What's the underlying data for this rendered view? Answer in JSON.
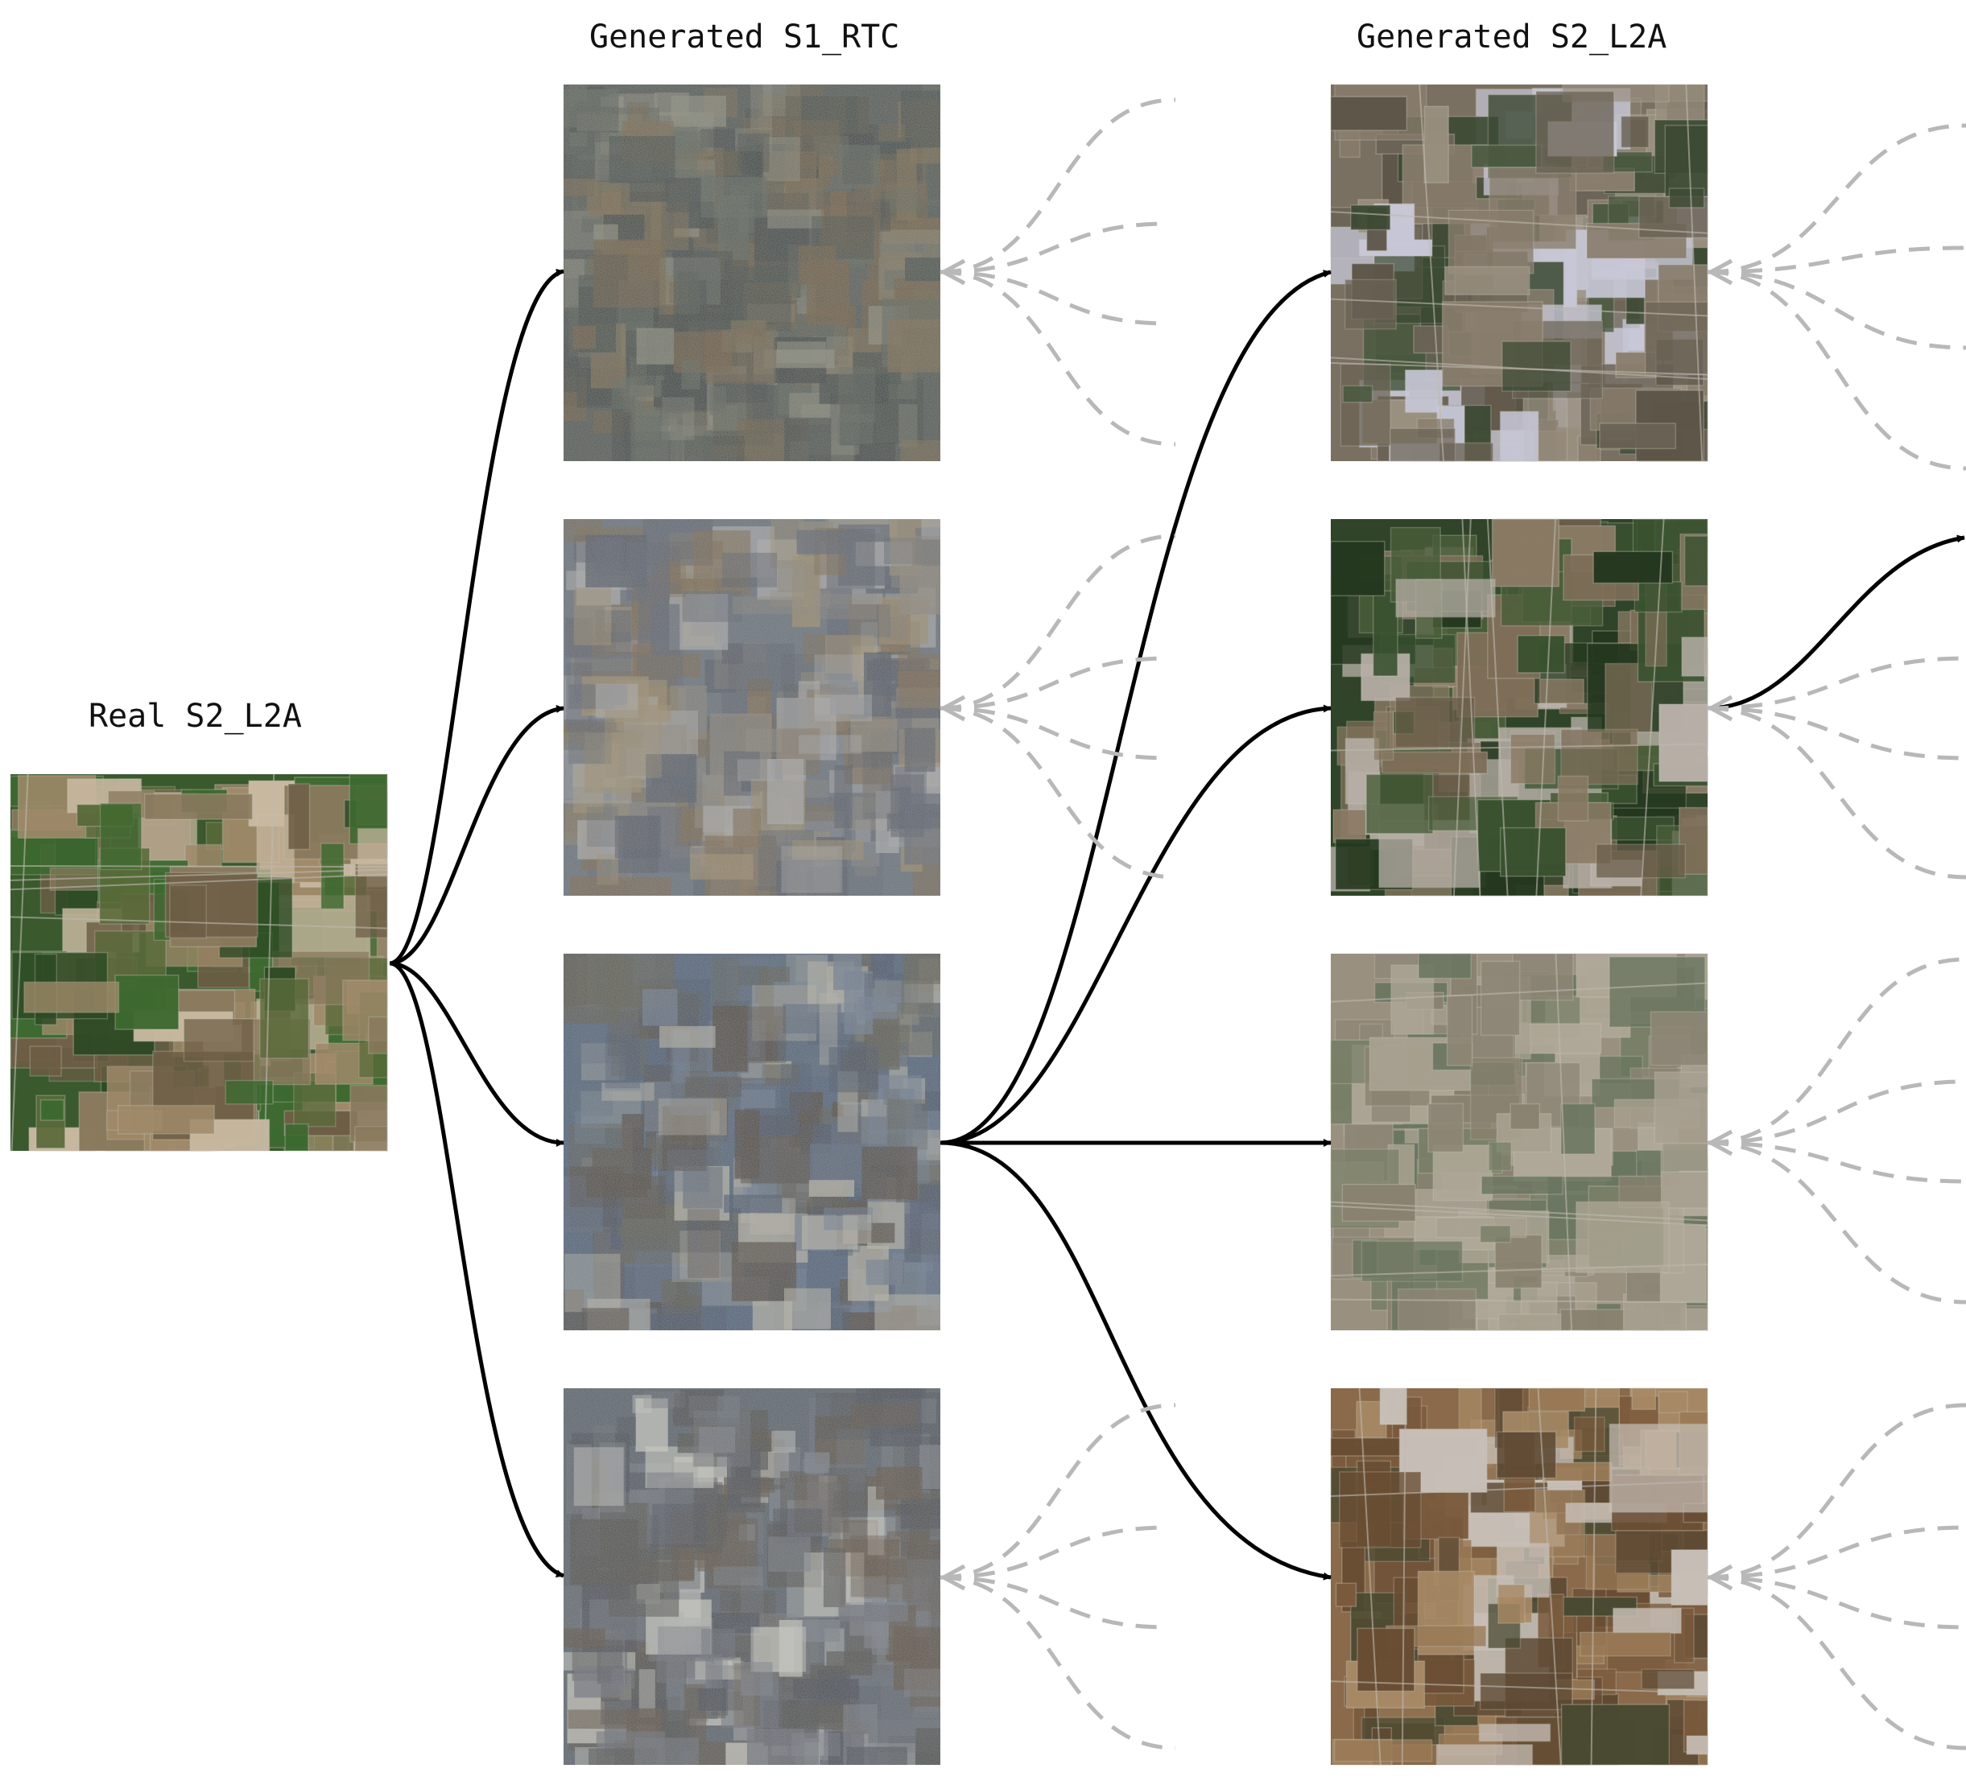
{
  "columns": {
    "real": {
      "title": "Real S2_L2A"
    },
    "s1": {
      "title": "Generated S1_RTC"
    },
    "s2": {
      "title": "Generated S2_L2A"
    }
  },
  "images": {
    "real": {
      "scene": "farmland-green",
      "palette": {
        "base": "#3a5a2e",
        "patches": [
          "#2d4a24",
          "#5a6b3a",
          "#8a7a5e",
          "#a08a6a",
          "#3d6a30",
          "#6e5e46",
          "#c8b8a0"
        ]
      }
    },
    "s1": [
      {
        "scene": "sar-composite",
        "palette": {
          "base": "#4e5550",
          "patches": [
            "#6e5a3a",
            "#38443e",
            "#5b6357",
            "#7a6846",
            "#2f3a38",
            "#8a8a7a"
          ]
        }
      },
      {
        "scene": "sar-composite",
        "palette": {
          "base": "#66707a",
          "patches": [
            "#7a6648",
            "#58606e",
            "#8a8478",
            "#4e5562",
            "#9a8a6a",
            "#a8a8a8"
          ]
        }
      },
      {
        "scene": "sar-composite",
        "palette": {
          "base": "#4a6078",
          "patches": [
            "#3e4e66",
            "#5a5a4e",
            "#4a4036",
            "#6a7a8e",
            "#56667a",
            "#b4b0a4"
          ]
        }
      },
      {
        "scene": "sar-composite",
        "palette": {
          "base": "#56606a",
          "patches": [
            "#4a4a46",
            "#6a6f78",
            "#5a4c3c",
            "#7a7f88",
            "#3e4450",
            "#c8c8c0"
          ]
        }
      }
    ],
    "s2": [
      {
        "scene": "farmland-brown",
        "palette": {
          "base": "#7a7062",
          "patches": [
            "#6b6355",
            "#4a5a40",
            "#8a7e6e",
            "#5e5648",
            "#3d4a34",
            "#9a9080",
            "#c8c8d8"
          ]
        }
      },
      {
        "scene": "farmland-dark-green",
        "palette": {
          "base": "#2f4428",
          "patches": [
            "#3a5230",
            "#6a5e4a",
            "#7e6e58",
            "#24381f",
            "#4a5e3a",
            "#8a7a64",
            "#b8b0a8"
          ]
        }
      },
      {
        "scene": "farmland-pale",
        "palette": {
          "base": "#9a9080",
          "patches": [
            "#8a8270",
            "#7a8068",
            "#a8a090",
            "#6a7660",
            "#b0a898",
            "#8e8676"
          ]
        }
      },
      {
        "scene": "farmland-arid",
        "palette": {
          "base": "#8a6a4a",
          "patches": [
            "#7a5a3c",
            "#9a7a56",
            "#6a4e34",
            "#a88a66",
            "#4a4a32",
            "#5e4a34",
            "#c8c0b8"
          ]
        }
      }
    ]
  },
  "edges": {
    "real_to_s1": [
      "s1-1",
      "s1-2",
      "s1-3",
      "s1-4"
    ],
    "s1_to_s2": {
      "from": "s1-3",
      "to": [
        "s2-1",
        "s2-2",
        "s2-3",
        "s2-4"
      ]
    },
    "s2_to_next": {
      "from": "s2-2",
      "to": "continuation"
    }
  },
  "colors": {
    "solid_edge": "#000000",
    "dashed_edge": "#b8b8b8"
  }
}
